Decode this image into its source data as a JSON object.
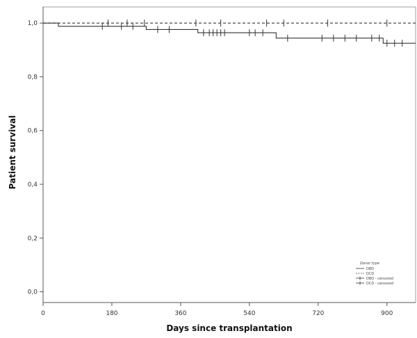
{
  "chart_data": {
    "type": "line",
    "title": "",
    "xlabel": "Days since transplantation",
    "ylabel": "Patient survival",
    "xlim": [
      0,
      975
    ],
    "ylim": [
      -0.04,
      1.06
    ],
    "x_ticks": [
      0,
      180,
      360,
      540,
      720,
      900
    ],
    "y_ticks": [
      0.0,
      0.2,
      0.4,
      0.6,
      0.8,
      1.0
    ],
    "x_tick_labels": [
      "0",
      "180",
      "360",
      "540",
      "720",
      "900"
    ],
    "y_tick_labels": [
      "0,0",
      "0,2",
      "0,4",
      "0,6",
      "0,8",
      "1,0"
    ],
    "grid": false,
    "legend": {
      "title": "Donor type",
      "placement": "bottom-right",
      "entries": [
        "DBD",
        "DCD",
        "DBD - censored",
        "DCD - censored"
      ]
    },
    "series": [
      {
        "name": "DBD",
        "style": "solid",
        "step": true,
        "x": [
          0,
          40,
          270,
          405,
          610,
          890,
          975
        ],
        "y": [
          1.0,
          0.988,
          0.976,
          0.964,
          0.944,
          0.925,
          0.925
        ],
        "censored_x": [
          155,
          205,
          235,
          300,
          330,
          420,
          435,
          445,
          455,
          465,
          475,
          540,
          555,
          575,
          640,
          730,
          760,
          790,
          820,
          860,
          880,
          900,
          920,
          940
        ]
      },
      {
        "name": "DCD",
        "style": "dashed",
        "step": true,
        "x": [
          0,
          975
        ],
        "y": [
          1.0,
          1.0
        ],
        "censored_x": [
          170,
          220,
          265,
          400,
          465,
          585,
          630,
          745,
          900
        ]
      }
    ],
    "colors": {
      "axis": "#555555",
      "line": "#333333",
      "text": "#222222"
    }
  }
}
